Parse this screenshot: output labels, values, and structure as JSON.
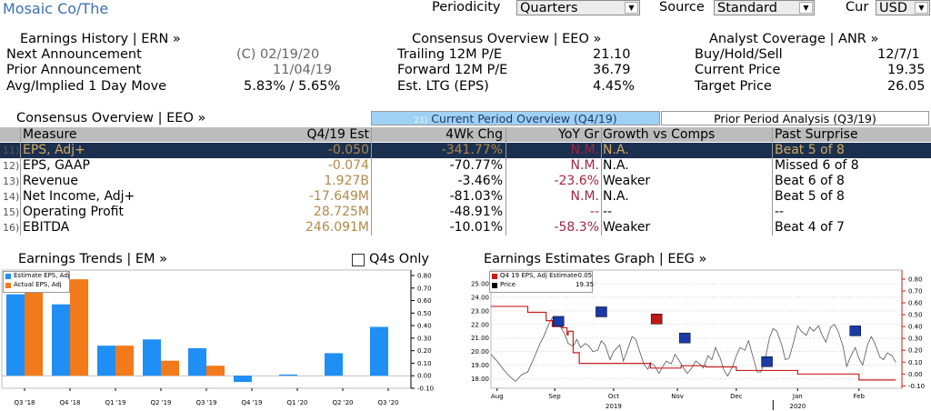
{
  "header": {
    "company": "Mosaic Co/The",
    "periodicity_label": "Periodicity",
    "periodicity_value": "Quarters",
    "source_label": "Source",
    "source_value": "Standard",
    "cur_label": "Cur",
    "cur_value": "USD"
  },
  "earnings_history": {
    "title": "Earnings History | ERN »",
    "rows": [
      {
        "label": "Next Announcement",
        "value": "(C)  02/19/20"
      },
      {
        "label": "Prior Announcement",
        "value": "11/04/19"
      },
      {
        "label": "Avg/Implied 1 Day Move",
        "value": "5.83% / 5.65%"
      }
    ]
  },
  "consensus_top": {
    "title": "Consensus Overview | EEO »",
    "rows": [
      {
        "label": "Trailing 12M P/E",
        "value": "21.10"
      },
      {
        "label": "Forward 12M P/E",
        "value": "36.79"
      },
      {
        "label": "Est. LTG (EPS)",
        "value": "4.45%"
      }
    ]
  },
  "analyst_coverage": {
    "title": "Analyst Coverage | ANR »",
    "rows": [
      {
        "label": "Buy/Hold/Sell",
        "value": "12/7/1"
      },
      {
        "label": "Current Price",
        "value": "19.35"
      },
      {
        "label": "Target Price",
        "value": "26.05"
      }
    ]
  },
  "consensus_table": {
    "title": "Consensus Overview | EEO »",
    "tab_current_prefix": "21)",
    "tab_current": "Current Period Overview (Q4/19)",
    "tab_prior": "Prior Period Analysis (Q3/19)",
    "columns": [
      "Measure",
      "Q4/19 Est",
      "4Wk Chg",
      "YoY Gr",
      "Growth vs Comps",
      "Past Surprise"
    ],
    "rows": [
      {
        "num": "11)",
        "measure": "EPS, Adj+",
        "est": "-0.050",
        "chg": "-341.77%",
        "yoy": "N.M.",
        "comps": "N.A.",
        "surprise": "Beat 5 of 8"
      },
      {
        "num": "12)",
        "measure": "EPS, GAAP",
        "est": "-0.074",
        "chg": "-70.77%",
        "yoy": "N.M.",
        "comps": "N.A.",
        "surprise": "Missed 6 of 8"
      },
      {
        "num": "13)",
        "measure": "Revenue",
        "est": "1.927B",
        "chg": "-3.46%",
        "yoy": "-23.6%",
        "comps": "Weaker",
        "surprise": "Beat 6 of 8"
      },
      {
        "num": "14)",
        "measure": "Net Income, Adj+",
        "est": "-17.649M",
        "chg": "-81.03%",
        "yoy": "N.M.",
        "comps": "N.A.",
        "surprise": "Beat 5 of 8"
      },
      {
        "num": "15)",
        "measure": "Operating Profit",
        "est": "28.725M",
        "chg": "-48.91%",
        "yoy": "--",
        "comps": "--",
        "surprise": "--"
      },
      {
        "num": "16)",
        "measure": "EBITDA",
        "est": "246.091M",
        "chg": "-10.01%",
        "yoy": "-58.3%",
        "comps": "Weaker",
        "surprise": "Beat 4 of 7"
      }
    ]
  },
  "earnings_trends": {
    "title": "Earnings Trends | EM »",
    "q4s_only_label": "Q4s Only",
    "q4s_only_checked": false
  },
  "earnings_graph": {
    "title": "Earnings Estimates Graph | EEG »"
  },
  "chart_data": [
    {
      "type": "bar",
      "categories": [
        "Q3 '18",
        "Q4 '18",
        "Q1 '19",
        "Q2 '19",
        "Q3 '19",
        "Q4 '19",
        "Q1 '20",
        "Q2 '20",
        "Q3 '20"
      ],
      "series": [
        {
          "name": "Estimate EPS, Adj",
          "color": "#1f8ff5",
          "values": [
            0.65,
            0.57,
            0.24,
            0.29,
            0.22,
            -0.05,
            0.01,
            0.18,
            0.39
          ]
        },
        {
          "name": "Actual EPS, Adj",
          "color": "#f37a1a",
          "values": [
            0.69,
            0.77,
            0.24,
            0.12,
            0.08,
            null,
            null,
            null,
            null
          ]
        }
      ],
      "ylim": [
        -0.1,
        0.8
      ],
      "yticks": [
        "0.80",
        "0.70",
        "0.60",
        "0.50",
        "0.40",
        "0.30",
        "0.20",
        "0.10",
        "0.00",
        "-0.10"
      ],
      "legend": "top-left"
    },
    {
      "type": "line",
      "legend_entries": [
        {
          "name": "Q4 19 EPS, Adj Estimate",
          "value": "-0.05",
          "color": "#d01818"
        },
        {
          "name": "Price",
          "value": "19.35",
          "color": "#000000"
        }
      ],
      "xlabels": [
        "Aug",
        "Sep",
        "Oct",
        "Nov",
        "Dec",
        "Jan",
        "Feb"
      ],
      "xlabels_years": [
        "2019",
        "2020"
      ],
      "left_ticks": [
        "25.00",
        "24.00",
        "23.00",
        "22.00",
        "21.00",
        "20.00",
        "19.00",
        "18.00"
      ],
      "right_ticks": [
        "0.80",
        "0.70",
        "0.60",
        "0.50",
        "0.40",
        "0.30",
        "0.20",
        "0.10",
        "0.00",
        "-0.10"
      ],
      "left_ylim": [
        17.3,
        25.6
      ],
      "right_ylim": [
        -0.12,
        0.83
      ],
      "estimate": [
        [
          0,
          0.57
        ],
        [
          0.17,
          0.57
        ],
        [
          0.3,
          0.52
        ],
        [
          0.45,
          0.45
        ],
        [
          0.5,
          0.4
        ],
        [
          0.58,
          0.39
        ],
        [
          0.62,
          0.33
        ],
        [
          0.63,
          0.36
        ],
        [
          0.67,
          0.18
        ],
        [
          0.72,
          0.09
        ],
        [
          1.0,
          0.09
        ],
        [
          1.3,
          0.05
        ],
        [
          1.55,
          0.07
        ],
        [
          1.75,
          0.06
        ],
        [
          2.0,
          0.03
        ],
        [
          2.3,
          0.03
        ],
        [
          2.5,
          0.0
        ],
        [
          3.0,
          -0.05
        ],
        [
          3.3,
          -0.05
        ]
      ],
      "price": [
        [
          0.0,
          19.8
        ],
        [
          0.05,
          19.3
        ],
        [
          0.1,
          18.7
        ],
        [
          0.15,
          18.2
        ],
        [
          0.2,
          17.8
        ],
        [
          0.25,
          18.3
        ],
        [
          0.3,
          18.5
        ],
        [
          0.35,
          19.5
        ],
        [
          0.4,
          20.6
        ],
        [
          0.43,
          21.1
        ],
        [
          0.47,
          22.0
        ],
        [
          0.5,
          22.5
        ],
        [
          0.55,
          22.1
        ],
        [
          0.6,
          21.3
        ],
        [
          0.63,
          20.6
        ],
        [
          0.67,
          20.4
        ],
        [
          0.7,
          20.9
        ],
        [
          0.73,
          20.3
        ],
        [
          0.77,
          20.6
        ],
        [
          0.8,
          20.4
        ],
        [
          0.83,
          20.0
        ],
        [
          0.87,
          20.1
        ],
        [
          0.9,
          20.8
        ],
        [
          0.93,
          20.5
        ],
        [
          0.97,
          19.4
        ],
        [
          1.0,
          20.0
        ],
        [
          1.05,
          20.5
        ],
        [
          1.08,
          19.3
        ],
        [
          1.12,
          20.3
        ],
        [
          1.15,
          21.1
        ],
        [
          1.18,
          20.9
        ],
        [
          1.22,
          19.8
        ],
        [
          1.25,
          19.0
        ],
        [
          1.28,
          18.7
        ],
        [
          1.3,
          19.2
        ],
        [
          1.33,
          19.0
        ],
        [
          1.37,
          18.4
        ],
        [
          1.4,
          18.9
        ],
        [
          1.43,
          19.3
        ],
        [
          1.47,
          19.1
        ],
        [
          1.5,
          19.8
        ],
        [
          1.53,
          19.4
        ],
        [
          1.57,
          18.8
        ],
        [
          1.6,
          18.4
        ],
        [
          1.63,
          18.7
        ],
        [
          1.67,
          19.3
        ],
        [
          1.7,
          19.1
        ],
        [
          1.73,
          18.8
        ],
        [
          1.77,
          19.7
        ],
        [
          1.8,
          19.4
        ],
        [
          1.83,
          20.3
        ],
        [
          1.87,
          19.5
        ],
        [
          1.9,
          18.6
        ],
        [
          1.93,
          18.2
        ],
        [
          1.97,
          18.9
        ],
        [
          2.0,
          19.7
        ],
        [
          2.03,
          20.3
        ],
        [
          2.07,
          20.1
        ],
        [
          2.1,
          20.8
        ],
        [
          2.13,
          19.8
        ],
        [
          2.17,
          18.5
        ],
        [
          2.2,
          18.5
        ],
        [
          2.23,
          19.2
        ],
        [
          2.27,
          21.0
        ],
        [
          2.3,
          21.7
        ],
        [
          2.33,
          21.5
        ],
        [
          2.37,
          20.5
        ],
        [
          2.4,
          19.4
        ],
        [
          2.43,
          19.5
        ],
        [
          2.47,
          20.8
        ],
        [
          2.5,
          21.9
        ],
        [
          2.53,
          21.5
        ],
        [
          2.57,
          21.2
        ],
        [
          2.6,
          21.8
        ],
        [
          2.63,
          21.5
        ],
        [
          2.67,
          21.9
        ],
        [
          2.7,
          21.2
        ],
        [
          2.73,
          20.7
        ],
        [
          2.77,
          21.8
        ],
        [
          2.8,
          22.0
        ],
        [
          2.83,
          21.5
        ],
        [
          2.87,
          20.4
        ],
        [
          2.9,
          18.9
        ],
        [
          2.93,
          19.6
        ],
        [
          2.97,
          20.3
        ],
        [
          3.0,
          19.5
        ],
        [
          3.03,
          19.0
        ],
        [
          3.07,
          20.5
        ],
        [
          3.1,
          21.1
        ],
        [
          3.13,
          20.6
        ],
        [
          3.17,
          19.6
        ],
        [
          3.2,
          19.4
        ],
        [
          3.23,
          19.9
        ],
        [
          3.27,
          19.7
        ],
        [
          3.3,
          19.2
        ]
      ],
      "markers": [
        {
          "x": 0.55,
          "v": 0.44,
          "color": "#1a3aa8"
        },
        {
          "x": 0.9,
          "v": 0.52,
          "color": "#1a3aa8"
        },
        {
          "x": 1.35,
          "v": 0.46,
          "color": "#c01818"
        },
        {
          "x": 1.58,
          "v": 0.3,
          "color": "#1a3aa8"
        },
        {
          "x": 2.25,
          "v": 0.1,
          "color": "#1a3aa8"
        },
        {
          "x": 2.97,
          "v": 0.36,
          "color": "#1a3aa8"
        }
      ]
    }
  ]
}
